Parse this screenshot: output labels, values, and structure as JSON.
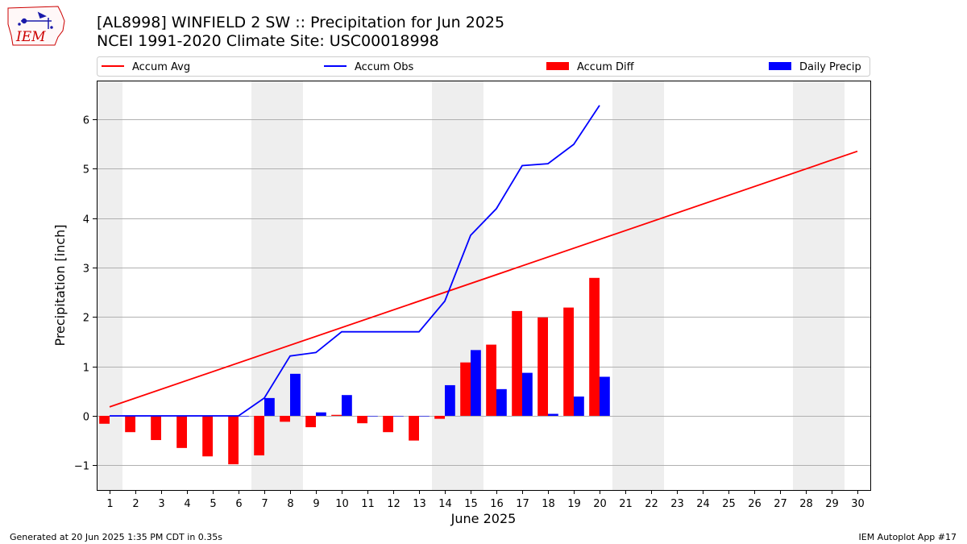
{
  "logo": {
    "text": "IEM",
    "color": "#cc0000"
  },
  "header": {
    "title": "[AL8998] WINFIELD 2 SW :: Precipitation for Jun 2025",
    "subtitle": "NCEI 1991-2020 Climate Site: USC00018998"
  },
  "footer": {
    "left": "Generated at 20 Jun 2025 1:35 PM CDT in 0.35s",
    "right": "IEM Autoplot App #17"
  },
  "chart_data": {
    "type": "bar",
    "xlabel": "June 2025",
    "ylabel": "Precipitation [inch]",
    "xlim": [
      0.5,
      30.5
    ],
    "ylim": [
      -1.5,
      6.78
    ],
    "yticks": [
      -1,
      0,
      1,
      2,
      3,
      4,
      5,
      6
    ],
    "ytick_labels": [
      "−1",
      "0",
      "1",
      "2",
      "3",
      "4",
      "5",
      "6"
    ],
    "x_days": [
      1,
      2,
      3,
      4,
      5,
      6,
      7,
      8,
      9,
      10,
      11,
      12,
      13,
      14,
      15,
      16,
      17,
      18,
      19,
      20,
      21,
      22,
      23,
      24,
      25,
      26,
      27,
      28,
      29,
      30
    ],
    "grid": "horizontal",
    "weekend_shading": [
      [
        0.5,
        1.5
      ],
      [
        6.5,
        8.5
      ],
      [
        13.5,
        15.5
      ],
      [
        20.5,
        22.5
      ],
      [
        27.5,
        29.5
      ]
    ],
    "legend": {
      "placement": "top",
      "entries": [
        {
          "label": "Accum Avg",
          "kind": "line",
          "color": "#ff0000"
        },
        {
          "label": "Accum Obs",
          "kind": "line",
          "color": "#0000ff"
        },
        {
          "label": "Accum Diff",
          "kind": "bar",
          "color": "#ff0000"
        },
        {
          "label": "Daily Precip",
          "kind": "bar",
          "color": "#0000ff"
        }
      ]
    },
    "series": [
      {
        "name": "Accum Avg",
        "kind": "line",
        "color": "#ff0000",
        "x": [
          1,
          30
        ],
        "values": [
          0.18,
          5.35
        ]
      },
      {
        "name": "Accum Obs",
        "kind": "line",
        "color": "#0000ff",
        "x": [
          1,
          2,
          3,
          4,
          5,
          6,
          7,
          8,
          9,
          10,
          11,
          12,
          13,
          14,
          15,
          16,
          17,
          18,
          19,
          20
        ],
        "values": [
          0,
          0,
          0,
          0,
          0,
          0,
          0.36,
          1.21,
          1.28,
          1.7,
          1.7,
          1.7,
          1.7,
          2.32,
          3.65,
          4.19,
          5.06,
          5.1,
          5.49,
          6.28
        ]
      },
      {
        "name": "Accum Diff",
        "kind": "bar",
        "color": "#ff0000",
        "x": [
          1,
          2,
          3,
          4,
          5,
          6,
          7,
          8,
          9,
          10,
          11,
          12,
          13,
          14,
          15,
          16,
          17,
          18,
          19,
          20
        ],
        "values": [
          -0.16,
          -0.33,
          -0.49,
          -0.65,
          -0.82,
          -0.98,
          -0.8,
          -0.12,
          -0.23,
          0.02,
          -0.15,
          -0.33,
          -0.5,
          -0.06,
          1.08,
          1.44,
          2.12,
          1.99,
          2.19,
          2.79
        ]
      },
      {
        "name": "Daily Precip",
        "kind": "bar",
        "color": "#0000ff",
        "x": [
          1,
          2,
          3,
          4,
          5,
          6,
          7,
          8,
          9,
          10,
          11,
          12,
          13,
          14,
          15,
          16,
          17,
          18,
          19,
          20
        ],
        "values": [
          0,
          0,
          0,
          0,
          0,
          0,
          0.36,
          0.85,
          0.07,
          0.42,
          0,
          0,
          0,
          0.62,
          1.33,
          0.54,
          0.87,
          0.04,
          0.39,
          0.79
        ]
      }
    ]
  }
}
